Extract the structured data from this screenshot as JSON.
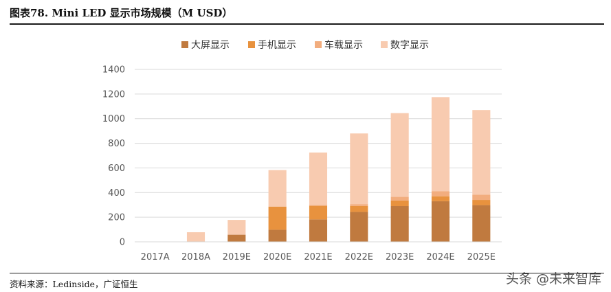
{
  "header": {
    "title": "图表78.   Mini LED 显示市场规模（M USD）"
  },
  "footer": {
    "source": "资料来源：Ledinside，广证恒生",
    "watermark": "头条 @未来智库"
  },
  "chart_data": {
    "type": "bar",
    "stacked": true,
    "title": "",
    "xlabel": "",
    "ylabel": "",
    "categories": [
      "2017A",
      "2018A",
      "2019E",
      "2020E",
      "2021E",
      "2022E",
      "2023E",
      "2024E",
      "2025E"
    ],
    "series": [
      {
        "name": "大屏显示",
        "color": "#c07a3f",
        "values": [
          0,
          0,
          58,
          98,
          182,
          243,
          290,
          330,
          298
        ]
      },
      {
        "name": "手机显示",
        "color": "#e8923e",
        "values": [
          0,
          0,
          0,
          188,
          110,
          48,
          45,
          40,
          42
        ]
      },
      {
        "name": "车载显示",
        "color": "#f2ad7e",
        "values": [
          0,
          0,
          0,
          2,
          8,
          15,
          30,
          40,
          42
        ]
      },
      {
        "name": "数字显示",
        "color": "#f8cbb0",
        "values": [
          0,
          78,
          120,
          295,
          425,
          574,
          680,
          765,
          688
        ]
      }
    ],
    "ylim": [
      0,
      1400
    ],
    "yticks": [
      0,
      200,
      400,
      600,
      800,
      1000,
      1200,
      1400
    ],
    "grid": true,
    "legend": "top-center"
  }
}
